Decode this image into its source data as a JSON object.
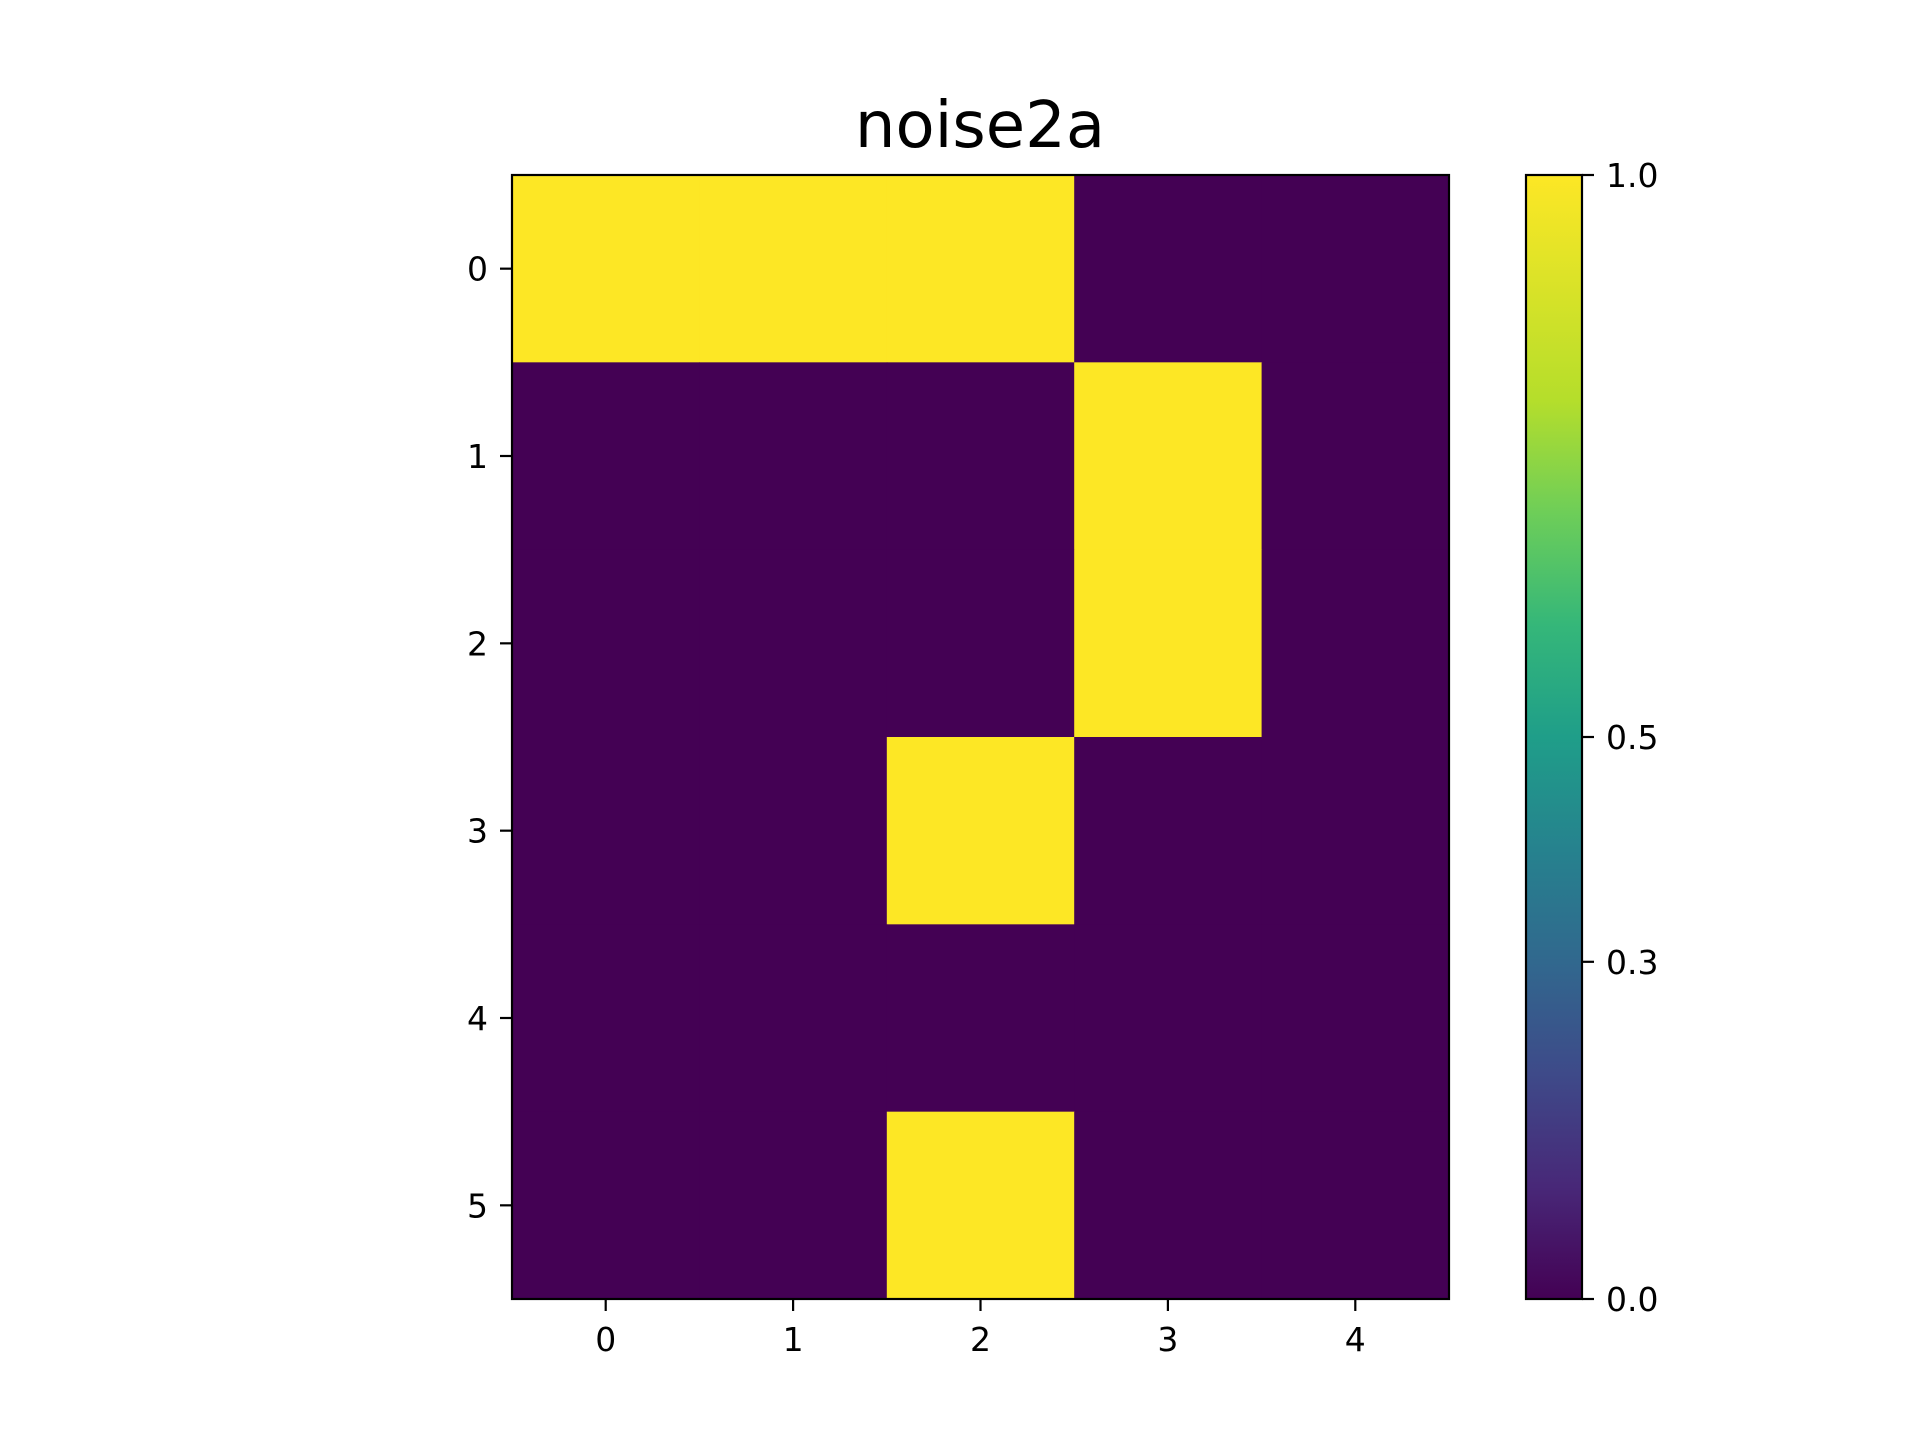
{
  "chart_data": {
    "type": "heatmap",
    "title": "noise2a",
    "x_ticks": [
      "0",
      "1",
      "2",
      "3",
      "4"
    ],
    "y_ticks": [
      "0",
      "1",
      "2",
      "3",
      "4",
      "5"
    ],
    "matrix": [
      [
        1,
        1,
        1,
        0,
        0
      ],
      [
        0,
        0,
        0,
        1,
        0
      ],
      [
        0,
        0,
        0,
        1,
        0
      ],
      [
        0,
        0,
        1,
        0,
        0
      ],
      [
        0,
        0,
        0,
        0,
        0
      ],
      [
        0,
        0,
        1,
        0,
        0
      ]
    ],
    "colormap": "viridis",
    "vmin": 0.0,
    "vmax": 1.0,
    "colorbar": {
      "ticks": [
        {
          "value": 1.0,
          "label": "1.0"
        },
        {
          "value": 0.5,
          "label": "0.5"
        },
        {
          "value": 0.3,
          "label": "0.3"
        },
        {
          "value": 0.0,
          "label": "0.0"
        }
      ]
    },
    "colors": {
      "low": "#440154",
      "high": "#fde725"
    }
  }
}
